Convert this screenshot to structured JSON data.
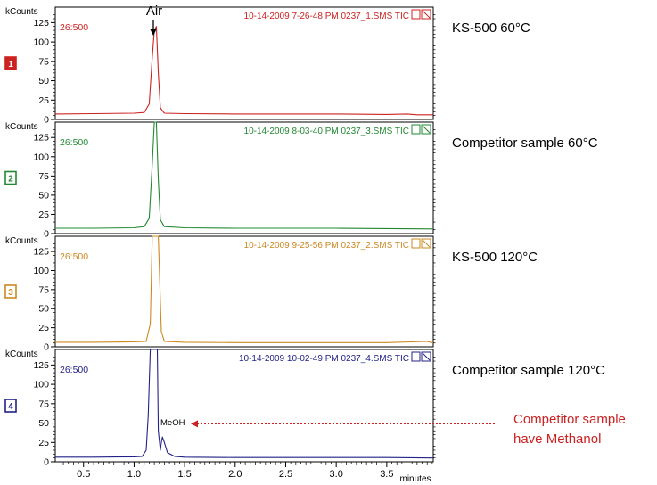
{
  "chart_data": {
    "type": "line",
    "xlabel": "minutes",
    "ylabel": "kCounts",
    "xlim": [
      0.22,
      3.96
    ],
    "x_ticks": [
      "0.5",
      "1.0",
      "1.5",
      "2.0",
      "2.5",
      "3.0",
      "3.5"
    ],
    "y_ticks": [
      "0",
      "25",
      "50",
      "75",
      "100",
      "125"
    ],
    "grid": false,
    "peak_label": "Air",
    "panels": [
      {
        "index": "1",
        "color": "#cc2222",
        "range_label": "26:500",
        "file_label": "10-14-2009 7-26-48 PM 0237_1.SMS TIC",
        "side_label": "KS-500 60°C",
        "ylim": [
          0,
          145
        ],
        "x": [
          0.22,
          0.6,
          1.0,
          1.1,
          1.15,
          1.18,
          1.2,
          1.22,
          1.24,
          1.26,
          1.3,
          1.5,
          2.0,
          2.5,
          3.0,
          3.5,
          3.7,
          3.8,
          3.96
        ],
        "y": [
          7,
          7.5,
          8,
          9,
          20,
          80,
          115,
          120,
          60,
          15,
          8,
          7.5,
          7,
          7,
          7,
          6.5,
          7,
          6,
          6
        ]
      },
      {
        "index": "2",
        "color": "#228833",
        "range_label": "26:500",
        "file_label": "10-14-2009 8-03-40 PM 0237_3.SMS TIC",
        "side_label": "Competitor sample 60°C",
        "ylim": [
          0,
          145
        ],
        "x": [
          0.22,
          0.6,
          1.0,
          1.1,
          1.15,
          1.18,
          1.2,
          1.22,
          1.24,
          1.26,
          1.3,
          1.5,
          2.0,
          2.5,
          3.0,
          3.5,
          3.96
        ],
        "y": [
          7,
          7,
          7.5,
          9,
          20,
          90,
          145,
          145,
          70,
          18,
          9,
          7.5,
          7,
          7,
          7,
          6.5,
          6
        ]
      },
      {
        "index": "3",
        "color": "#cc8822",
        "range_label": "26:500",
        "file_label": "10-14-2009 9-25-56 PM 0237_2.SMS TIC",
        "side_label": "KS-500 120°C",
        "ylim": [
          0,
          145
        ],
        "x": [
          0.22,
          0.6,
          1.0,
          1.12,
          1.16,
          1.18,
          1.2,
          1.22,
          1.24,
          1.27,
          1.3,
          1.5,
          2.0,
          2.5,
          3.0,
          3.5,
          3.9,
          3.96
        ],
        "y": [
          6,
          6,
          6.5,
          7,
          30,
          145,
          145,
          145,
          145,
          20,
          7,
          6,
          5.5,
          5.5,
          5.5,
          5.5,
          7,
          5
        ]
      },
      {
        "index": "4",
        "color": "#222288",
        "range_label": "26:500",
        "file_label": "10-14-2009 10-02-49 PM 0237_4.SMS TIC",
        "side_label": "Competitor sample 120°C",
        "ylim": [
          0,
          145
        ],
        "annotation": "MeOH",
        "x": [
          0.22,
          0.6,
          1.0,
          1.08,
          1.12,
          1.14,
          1.16,
          1.2,
          1.23,
          1.24,
          1.26,
          1.27,
          1.28,
          1.3,
          1.33,
          1.4,
          1.5,
          2.0,
          2.5,
          3.0,
          3.5,
          3.96
        ],
        "y": [
          6,
          6,
          6.5,
          7,
          15,
          60,
          145,
          145,
          145,
          40,
          15,
          25,
          32,
          25,
          12,
          7,
          6,
          5.5,
          5.5,
          5.5,
          5.5,
          5
        ]
      }
    ],
    "callout": {
      "line1": "Competitor sample",
      "line2": "have Methanol",
      "color": "#cc2222"
    }
  }
}
